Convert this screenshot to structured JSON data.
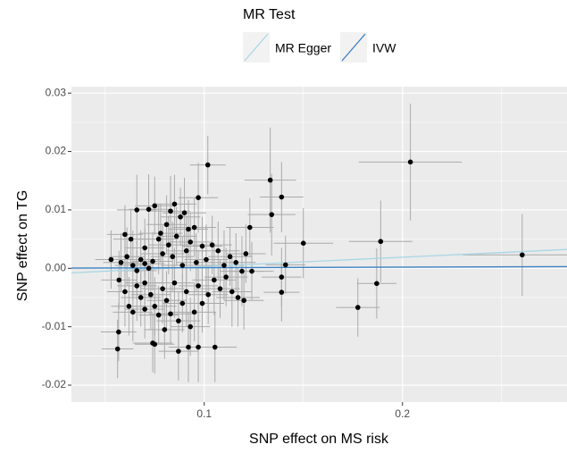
{
  "chart_data": {
    "type": "scatter",
    "legend_title": "MR Test",
    "x_label": "SNP effect on MS risk",
    "y_label": "SNP effect on TG",
    "xlim": [
      0.033,
      0.283
    ],
    "ylim": [
      -0.0229,
      0.0311
    ],
    "xticks": [
      0.1,
      0.2
    ],
    "yticks": [
      -0.02,
      -0.01,
      {
        "value": 0,
        "label": "0.00"
      },
      0.01,
      0.02,
      0.03
    ],
    "grid": true,
    "point_color": "#000000",
    "errorbar_color": "#aaaaaa",
    "lines": [
      {
        "name": "MR Egger",
        "color": "#a9d6e5",
        "intercept": -0.0013,
        "slope": 0.016
      },
      {
        "name": "IVW",
        "color": "#3a7fc1",
        "intercept": 0,
        "slope": 0.001
      }
    ],
    "points": [
      {
        "x": 0.1018,
        "y": 0.0177,
        "xerr": 0.009,
        "yerr": 0.005
      },
      {
        "x": 0.204,
        "y": 0.0182,
        "xerr": 0.026,
        "yerr": 0.01
      },
      {
        "x": 0.2604,
        "y": 0.0023,
        "xerr": 0.03,
        "yerr": 0.007
      },
      {
        "x": 0.189,
        "y": 0.0046,
        "xerr": 0.016,
        "yerr": 0.007
      },
      {
        "x": 0.187,
        "y": -0.0026,
        "xerr": 0.01,
        "yerr": 0.006
      },
      {
        "x": 0.1775,
        "y": -0.0067,
        "xerr": 0.011,
        "yerr": 0.005
      },
      {
        "x": 0.15,
        "y": 0.0043,
        "xerr": 0.015,
        "yerr": 0.006
      },
      {
        "x": 0.1333,
        "y": 0.0151,
        "xerr": 0.013,
        "yerr": 0.009
      },
      {
        "x": 0.134,
        "y": 0.0092,
        "xerr": 0.012,
        "yerr": 0.007
      },
      {
        "x": 0.139,
        "y": 0.0122,
        "xerr": 0.011,
        "yerr": 0.006
      },
      {
        "x": 0.123,
        "y": 0.007,
        "xerr": 0.012,
        "yerr": 0.005
      },
      {
        "x": 0.141,
        "y": 0.0006,
        "xerr": 0.01,
        "yerr": 0.005
      },
      {
        "x": 0.139,
        "y": -0.0015,
        "xerr": 0.01,
        "yerr": 0.005
      },
      {
        "x": 0.139,
        "y": -0.0041,
        "xerr": 0.009,
        "yerr": 0.005
      },
      {
        "x": 0.097,
        "y": 0.0121,
        "xerr": 0.01,
        "yerr": 0.006
      },
      {
        "x": 0.0568,
        "y": -0.0109,
        "xerr": 0.009,
        "yerr": 0.005
      },
      {
        "x": 0.0563,
        "y": -0.0138,
        "xerr": 0.008,
        "yerr": 0.005
      },
      {
        "x": 0.075,
        "y": -0.013,
        "xerr": 0.01,
        "yerr": 0.005
      },
      {
        "x": 0.087,
        "y": -0.0142,
        "xerr": 0.01,
        "yerr": 0.005
      },
      {
        "x": 0.097,
        "y": -0.0135,
        "xerr": 0.01,
        "yerr": 0.006
      },
      {
        "x": 0.1054,
        "y": -0.0135,
        "xerr": 0.011,
        "yerr": 0.006
      },
      {
        "x": 0.053,
        "y": 0.0015,
        "xerr": 0.008,
        "yerr": 0.005
      },
      {
        "x": 0.06,
        "y": 0.0058,
        "xerr": 0.009,
        "yerr": 0.005
      },
      {
        "x": 0.063,
        "y": 0.005,
        "xerr": 0.009,
        "yerr": 0.005
      },
      {
        "x": 0.066,
        "y": 0.01,
        "xerr": 0.01,
        "yerr": 0.006
      },
      {
        "x": 0.07,
        "y": 0.0035,
        "xerr": 0.01,
        "yerr": 0.005
      },
      {
        "x": 0.072,
        "y": 0.0101,
        "xerr": 0.01,
        "yerr": 0.006
      },
      {
        "x": 0.075,
        "y": 0.0107,
        "xerr": 0.01,
        "yerr": 0.005
      },
      {
        "x": 0.078,
        "y": 0.006,
        "xerr": 0.011,
        "yerr": 0.005
      },
      {
        "x": 0.081,
        "y": 0.0075,
        "xerr": 0.01,
        "yerr": 0.005
      },
      {
        "x": 0.083,
        "y": 0.0098,
        "xerr": 0.01,
        "yerr": 0.006
      },
      {
        "x": 0.085,
        "y": 0.011,
        "xerr": 0.011,
        "yerr": 0.005
      },
      {
        "x": 0.088,
        "y": 0.0088,
        "xerr": 0.01,
        "yerr": 0.005
      },
      {
        "x": 0.09,
        "y": 0.0095,
        "xerr": 0.011,
        "yerr": 0.006
      },
      {
        "x": 0.092,
        "y": 0.0067,
        "xerr": 0.01,
        "yerr": 0.005
      },
      {
        "x": 0.095,
        "y": 0.007,
        "xerr": 0.011,
        "yerr": 0.005
      },
      {
        "x": 0.099,
        "y": 0.0038,
        "xerr": 0.01,
        "yerr": 0.005
      },
      {
        "x": 0.058,
        "y": 0.001,
        "xerr": 0.009,
        "yerr": 0.005
      },
      {
        "x": 0.061,
        "y": 0.002,
        "xerr": 0.009,
        "yerr": 0.005
      },
      {
        "x": 0.064,
        "y": 0.0005,
        "xerr": 0.009,
        "yerr": 0.006
      },
      {
        "x": 0.066,
        "y": -0.0004,
        "xerr": 0.01,
        "yerr": 0.005
      },
      {
        "x": 0.068,
        "y": 0.0015,
        "xerr": 0.01,
        "yerr": 0.005
      },
      {
        "x": 0.07,
        "y": 0.0008,
        "xerr": 0.01,
        "yerr": 0.006
      },
      {
        "x": 0.072,
        "y": 0.0,
        "xerr": 0.01,
        "yerr": 0.005
      },
      {
        "x": 0.074,
        "y": 0.0012,
        "xerr": 0.01,
        "yerr": 0.005
      },
      {
        "x": 0.077,
        "y": 0.005,
        "xerr": 0.01,
        "yerr": 0.006
      },
      {
        "x": 0.079,
        "y": 0.0025,
        "xerr": 0.011,
        "yerr": 0.005
      },
      {
        "x": 0.082,
        "y": 0.004,
        "xerr": 0.01,
        "yerr": 0.005
      },
      {
        "x": 0.084,
        "y": 0.002,
        "xerr": 0.011,
        "yerr": 0.006
      },
      {
        "x": 0.086,
        "y": 0.0055,
        "xerr": 0.01,
        "yerr": 0.005
      },
      {
        "x": 0.089,
        "y": 0.0005,
        "xerr": 0.011,
        "yerr": 0.005
      },
      {
        "x": 0.091,
        "y": 0.003,
        "xerr": 0.01,
        "yerr": 0.006
      },
      {
        "x": 0.093,
        "y": 0.0045,
        "xerr": 0.011,
        "yerr": 0.005
      },
      {
        "x": 0.096,
        "y": 0.001,
        "xerr": 0.01,
        "yerr": 0.005
      },
      {
        "x": 0.101,
        "y": 0.0015,
        "xerr": 0.011,
        "yerr": 0.006
      },
      {
        "x": 0.104,
        "y": 0.004,
        "xerr": 0.01,
        "yerr": 0.005
      },
      {
        "x": 0.107,
        "y": 0.003,
        "xerr": 0.011,
        "yerr": 0.005
      },
      {
        "x": 0.11,
        "y": 0.0005,
        "xerr": 0.01,
        "yerr": 0.006
      },
      {
        "x": 0.113,
        "y": 0.002,
        "xerr": 0.011,
        "yerr": 0.005
      },
      {
        "x": 0.116,
        "y": 0.001,
        "xerr": 0.01,
        "yerr": 0.005
      },
      {
        "x": 0.119,
        "y": -0.0005,
        "xerr": 0.011,
        "yerr": 0.006
      },
      {
        "x": 0.121,
        "y": 0.0025,
        "xerr": 0.01,
        "yerr": 0.005
      },
      {
        "x": 0.124,
        "y": -0.0005,
        "xerr": 0.011,
        "yerr": 0.005
      },
      {
        "x": 0.057,
        "y": -0.002,
        "xerr": 0.009,
        "yerr": 0.005
      },
      {
        "x": 0.06,
        "y": -0.004,
        "xerr": 0.009,
        "yerr": 0.006
      },
      {
        "x": 0.062,
        "y": -0.0065,
        "xerr": 0.009,
        "yerr": 0.005
      },
      {
        "x": 0.064,
        "y": -0.0075,
        "xerr": 0.01,
        "yerr": 0.005
      },
      {
        "x": 0.066,
        "y": -0.003,
        "xerr": 0.01,
        "yerr": 0.006
      },
      {
        "x": 0.068,
        "y": -0.005,
        "xerr": 0.01,
        "yerr": 0.005
      },
      {
        "x": 0.07,
        "y": -0.0025,
        "xerr": 0.01,
        "yerr": 0.005
      },
      {
        "x": 0.073,
        "y": -0.0045,
        "xerr": 0.01,
        "yerr": 0.006
      },
      {
        "x": 0.075,
        "y": -0.0065,
        "xerr": 0.011,
        "yerr": 0.005
      },
      {
        "x": 0.077,
        "y": -0.008,
        "xerr": 0.01,
        "yerr": 0.005
      },
      {
        "x": 0.079,
        "y": -0.0035,
        "xerr": 0.011,
        "yerr": 0.006
      },
      {
        "x": 0.081,
        "y": -0.0055,
        "xerr": 0.01,
        "yerr": 0.005
      },
      {
        "x": 0.083,
        "y": -0.0078,
        "xerr": 0.011,
        "yerr": 0.005
      },
      {
        "x": 0.085,
        "y": -0.0025,
        "xerr": 0.01,
        "yerr": 0.006
      },
      {
        "x": 0.087,
        "y": -0.009,
        "xerr": 0.011,
        "yerr": 0.005
      },
      {
        "x": 0.089,
        "y": -0.006,
        "xerr": 0.01,
        "yerr": 0.005
      },
      {
        "x": 0.091,
        "y": -0.004,
        "xerr": 0.011,
        "yerr": 0.006
      },
      {
        "x": 0.093,
        "y": -0.01,
        "xerr": 0.01,
        "yerr": 0.005
      },
      {
        "x": 0.095,
        "y": -0.0075,
        "xerr": 0.011,
        "yerr": 0.005
      },
      {
        "x": 0.097,
        "y": -0.003,
        "xerr": 0.01,
        "yerr": 0.006
      },
      {
        "x": 0.099,
        "y": -0.006,
        "xerr": 0.011,
        "yerr": 0.005
      },
      {
        "x": 0.102,
        "y": -0.0045,
        "xerr": 0.01,
        "yerr": 0.005
      },
      {
        "x": 0.105,
        "y": -0.002,
        "xerr": 0.011,
        "yerr": 0.006
      },
      {
        "x": 0.108,
        "y": -0.0035,
        "xerr": 0.01,
        "yerr": 0.005
      },
      {
        "x": 0.111,
        "y": -0.0015,
        "xerr": 0.011,
        "yerr": 0.005
      },
      {
        "x": 0.114,
        "y": -0.004,
        "xerr": 0.01,
        "yerr": 0.006
      },
      {
        "x": 0.117,
        "y": -0.005,
        "xerr": 0.011,
        "yerr": 0.005
      },
      {
        "x": 0.12,
        "y": -0.0055,
        "xerr": 0.01,
        "yerr": 0.005
      },
      {
        "x": 0.074,
        "y": -0.0128,
        "xerr": 0.01,
        "yerr": 0.005
      },
      {
        "x": 0.092,
        "y": -0.0135,
        "xerr": 0.01,
        "yerr": 0.006
      },
      {
        "x": 0.08,
        "y": -0.0105,
        "xerr": 0.01,
        "yerr": 0.005
      },
      {
        "x": 0.07,
        "y": -0.007,
        "xerr": 0.01,
        "yerr": 0.005
      }
    ]
  }
}
